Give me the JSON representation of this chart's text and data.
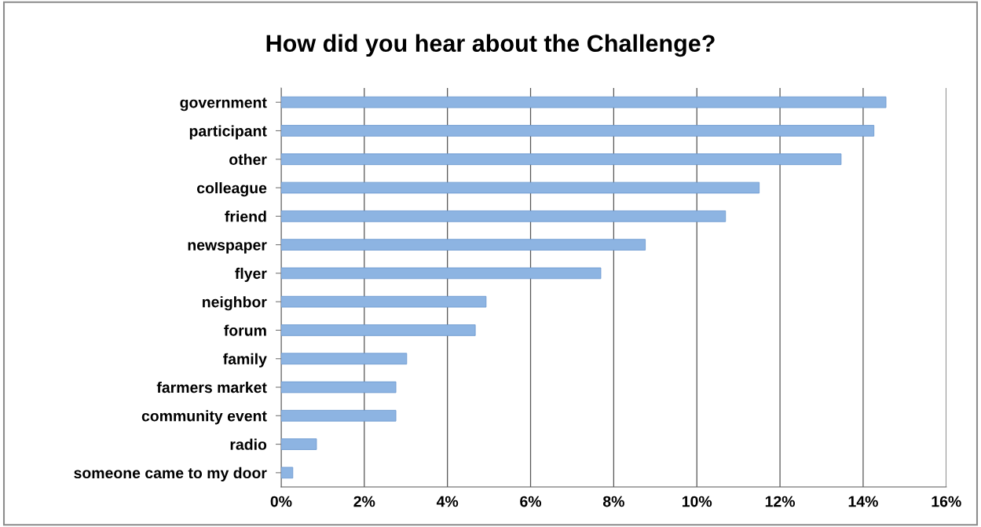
{
  "chart_data": {
    "type": "bar",
    "orientation": "horizontal",
    "title": "How did you hear about the Challenge?",
    "categories": [
      "government",
      "participant",
      "other",
      "colleague",
      "friend",
      "newspaper",
      "flyer",
      "neighbor",
      "forum",
      "family",
      "farmers market",
      "community event",
      "radio",
      "someone came to my door"
    ],
    "values": [
      14.55,
      14.26,
      13.47,
      11.5,
      10.69,
      8.76,
      7.69,
      4.93,
      4.67,
      3.02,
      2.76,
      2.76,
      0.85,
      0.28
    ],
    "color": "#8db4e2",
    "xlim": [
      0,
      16
    ],
    "xticks": [
      {
        "value": 0,
        "label": "0%"
      },
      {
        "value": 2,
        "label": "2%"
      },
      {
        "value": 4,
        "label": "4%"
      },
      {
        "value": 6,
        "label": "6%"
      },
      {
        "value": 8,
        "label": "8%"
      },
      {
        "value": 10,
        "label": "10%"
      },
      {
        "value": 12,
        "label": "12%"
      },
      {
        "value": 14,
        "label": "14%"
      },
      {
        "value": 16,
        "label": "16%"
      }
    ],
    "grid": "x",
    "legend": false
  }
}
